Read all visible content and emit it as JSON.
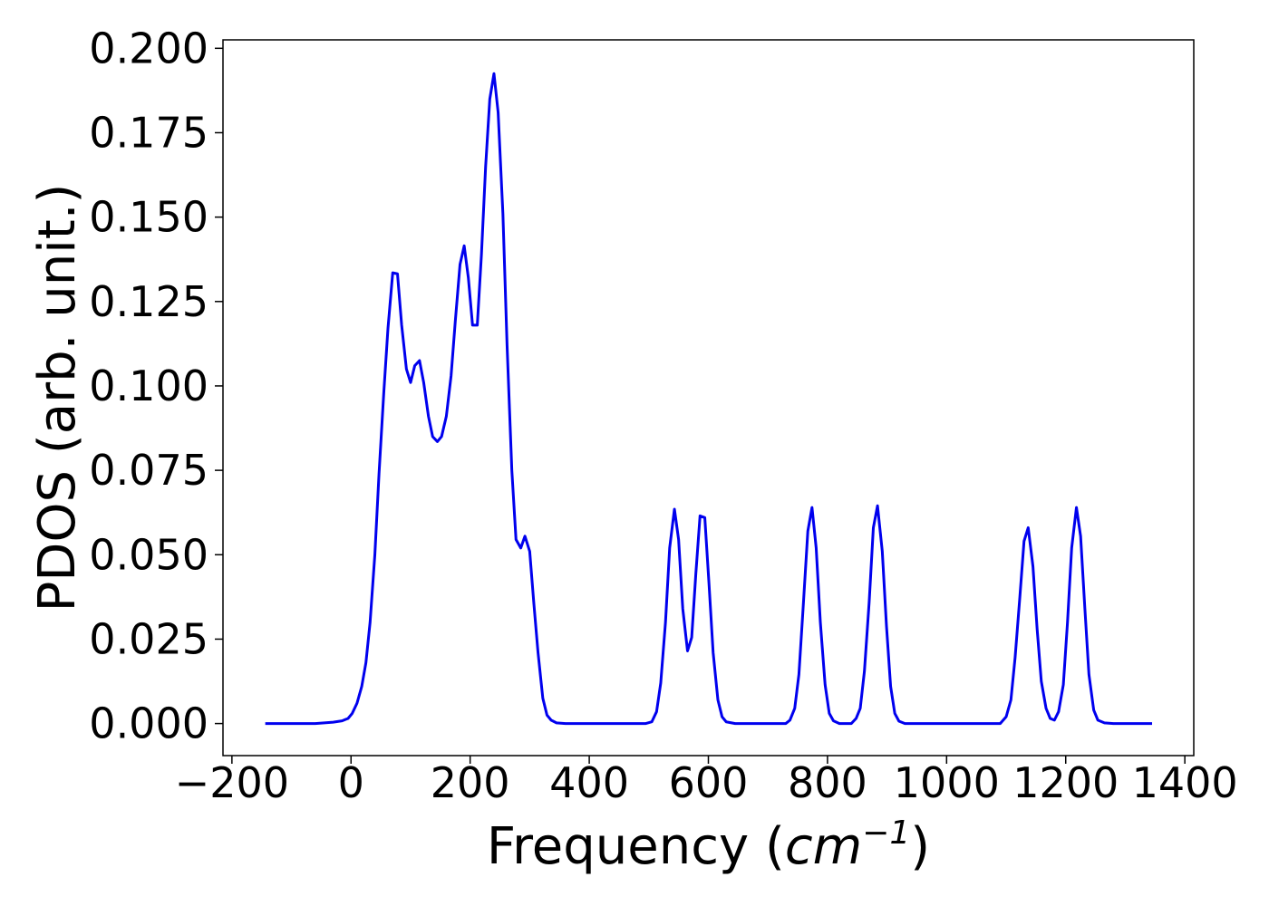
{
  "chart_data": {
    "type": "line",
    "title": "",
    "xlabel": {
      "prefix": "Frequency (",
      "unit_base": "cm",
      "unit_exponent": "−1",
      "suffix": ")"
    },
    "ylabel": "PDOS (arb. unit.)",
    "xlim": [
      -215,
      1415
    ],
    "ylim": [
      -0.0095,
      0.2025
    ],
    "x_ticks": [
      -200,
      0,
      200,
      400,
      600,
      800,
      1000,
      1200,
      1400
    ],
    "x_tick_labels": [
      "−200",
      "0",
      "200",
      "400",
      "600",
      "800",
      "1000",
      "1200",
      "1400"
    ],
    "y_ticks": [
      0.0,
      0.025,
      0.05,
      0.075,
      0.1,
      0.125,
      0.15,
      0.175,
      0.2
    ],
    "y_tick_labels": [
      "0.000",
      "0.025",
      "0.050",
      "0.075",
      "0.100",
      "0.125",
      "0.150",
      "0.175",
      "0.200"
    ],
    "grid": false,
    "legend": "none",
    "series": [
      {
        "color": "#0000ee",
        "points": [
          [
            -144,
            0.0
          ],
          [
            -100,
            0.0
          ],
          [
            -60,
            0.0
          ],
          [
            -30,
            0.0004
          ],
          [
            -15,
            0.0008
          ],
          [
            -5,
            0.0015
          ],
          [
            2,
            0.003
          ],
          [
            10,
            0.006
          ],
          [
            18,
            0.011
          ],
          [
            25,
            0.018
          ],
          [
            32,
            0.03
          ],
          [
            40,
            0.05
          ],
          [
            47,
            0.074
          ],
          [
            55,
            0.098
          ],
          [
            62,
            0.117
          ],
          [
            70,
            0.1335
          ],
          [
            78,
            0.1332
          ],
          [
            85,
            0.118
          ],
          [
            93,
            0.105
          ],
          [
            100,
            0.101
          ],
          [
            107,
            0.106
          ],
          [
            115,
            0.1075
          ],
          [
            122,
            0.101
          ],
          [
            130,
            0.091
          ],
          [
            137,
            0.085
          ],
          [
            145,
            0.0835
          ],
          [
            152,
            0.085
          ],
          [
            160,
            0.091
          ],
          [
            168,
            0.103
          ],
          [
            175,
            0.119
          ],
          [
            183,
            0.136
          ],
          [
            190,
            0.1415
          ],
          [
            197,
            0.132
          ],
          [
            204,
            0.118
          ],
          [
            212,
            0.118
          ],
          [
            219,
            0.139
          ],
          [
            226,
            0.165
          ],
          [
            233,
            0.185
          ],
          [
            240,
            0.1925
          ],
          [
            247,
            0.181
          ],
          [
            255,
            0.151
          ],
          [
            262,
            0.112
          ],
          [
            270,
            0.075
          ],
          [
            277,
            0.0545
          ],
          [
            285,
            0.052
          ],
          [
            292,
            0.0555
          ],
          [
            300,
            0.051
          ],
          [
            307,
            0.0355
          ],
          [
            314,
            0.021
          ],
          [
            322,
            0.0075
          ],
          [
            329,
            0.0025
          ],
          [
            336,
            0.001
          ],
          [
            345,
            0.0002
          ],
          [
            360,
            0.0
          ],
          [
            400,
            0.0
          ],
          [
            450,
            0.0
          ],
          [
            495,
            0.0
          ],
          [
            505,
            0.0005
          ],
          [
            513,
            0.0035
          ],
          [
            520,
            0.012
          ],
          [
            528,
            0.03
          ],
          [
            535,
            0.052
          ],
          [
            543,
            0.0635
          ],
          [
            550,
            0.0545
          ],
          [
            557,
            0.034
          ],
          [
            565,
            0.0215
          ],
          [
            572,
            0.0255
          ],
          [
            579,
            0.0445
          ],
          [
            586,
            0.0615
          ],
          [
            594,
            0.061
          ],
          [
            601,
            0.0415
          ],
          [
            608,
            0.021
          ],
          [
            616,
            0.007
          ],
          [
            623,
            0.002
          ],
          [
            630,
            0.0005
          ],
          [
            645,
            0.0
          ],
          [
            700,
            0.0
          ],
          [
            730,
            0.0
          ],
          [
            737,
            0.001
          ],
          [
            745,
            0.0045
          ],
          [
            752,
            0.0145
          ],
          [
            759,
            0.034
          ],
          [
            767,
            0.057
          ],
          [
            774,
            0.064
          ],
          [
            781,
            0.052
          ],
          [
            788,
            0.03
          ],
          [
            796,
            0.0115
          ],
          [
            803,
            0.003
          ],
          [
            810,
            0.0008
          ],
          [
            820,
            0.0
          ],
          [
            840,
            0.0
          ],
          [
            848,
            0.0015
          ],
          [
            855,
            0.0045
          ],
          [
            862,
            0.0155
          ],
          [
            870,
            0.036
          ],
          [
            877,
            0.058
          ],
          [
            884,
            0.0645
          ],
          [
            892,
            0.051
          ],
          [
            899,
            0.029
          ],
          [
            906,
            0.011
          ],
          [
            913,
            0.003
          ],
          [
            920,
            0.0007
          ],
          [
            930,
            0.0
          ],
          [
            1000,
            0.0
          ],
          [
            1080,
            0.0
          ],
          [
            1090,
            0.0
          ],
          [
            1100,
            0.002
          ],
          [
            1108,
            0.007
          ],
          [
            1115,
            0.0195
          ],
          [
            1123,
            0.0375
          ],
          [
            1130,
            0.054
          ],
          [
            1137,
            0.058
          ],
          [
            1145,
            0.0465
          ],
          [
            1152,
            0.028
          ],
          [
            1159,
            0.0125
          ],
          [
            1167,
            0.0045
          ],
          [
            1174,
            0.0015
          ],
          [
            1181,
            0.001
          ],
          [
            1188,
            0.0035
          ],
          [
            1196,
            0.0115
          ],
          [
            1203,
            0.03
          ],
          [
            1210,
            0.052
          ],
          [
            1218,
            0.064
          ],
          [
            1225,
            0.0555
          ],
          [
            1232,
            0.0345
          ],
          [
            1239,
            0.0145
          ],
          [
            1247,
            0.004
          ],
          [
            1254,
            0.001
          ],
          [
            1265,
            0.0002
          ],
          [
            1280,
            0.0
          ],
          [
            1345,
            0.0
          ]
        ]
      }
    ]
  }
}
